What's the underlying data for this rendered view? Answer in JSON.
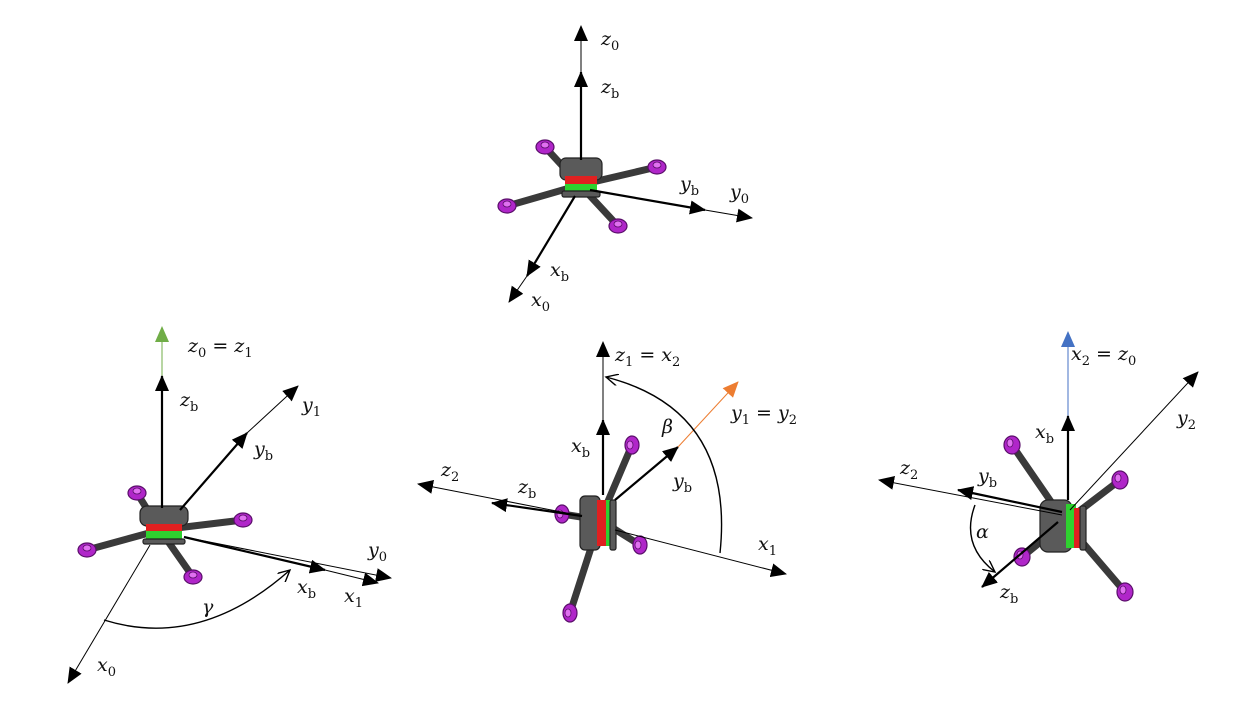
{
  "colors": {
    "axis": "#000000",
    "green_axis": "#70ad47",
    "orange_axis": "#ed7d31",
    "blue_axis": "#4472c4",
    "motor": "#b026c9",
    "frame": "#3a3a3a",
    "red_part": "#e02020",
    "green_part": "#2fd12f"
  },
  "panels": {
    "top": {
      "z0": {
        "base": "z",
        "sub": "0"
      },
      "zb": {
        "base": "z",
        "sub": "b"
      },
      "yb": {
        "base": "y",
        "sub": "b"
      },
      "y0": {
        "base": "y",
        "sub": "0"
      },
      "xb": {
        "base": "x",
        "sub": "b"
      },
      "x0": {
        "base": "x",
        "sub": "0"
      }
    },
    "yaw": {
      "z0z1": {
        "b1": "z",
        "s1": "0",
        "eq": " = ",
        "b2": "z",
        "s2": "1"
      },
      "zb": {
        "base": "z",
        "sub": "b"
      },
      "y1": {
        "base": "y",
        "sub": "1"
      },
      "yb": {
        "base": "y",
        "sub": "b"
      },
      "y0": {
        "base": "y",
        "sub": "0"
      },
      "xb": {
        "base": "x",
        "sub": "b"
      },
      "x1": {
        "base": "x",
        "sub": "1"
      },
      "x0": {
        "base": "x",
        "sub": "0"
      },
      "angle": "γ"
    },
    "pitch": {
      "z1x2": {
        "b1": "z",
        "s1": "1",
        "eq": " = ",
        "b2": "x",
        "s2": "2"
      },
      "y1y2": {
        "b1": "y",
        "s1": "1",
        "eq": " = ",
        "b2": "y",
        "s2": "2"
      },
      "xb": {
        "base": "x",
        "sub": "b"
      },
      "z2": {
        "base": "z",
        "sub": "2"
      },
      "zb": {
        "base": "z",
        "sub": "b"
      },
      "yb": {
        "base": "y",
        "sub": "b"
      },
      "x1": {
        "base": "x",
        "sub": "1"
      },
      "angle": "β"
    },
    "roll": {
      "x2z0": {
        "b1": "x",
        "s1": "2",
        "eq": " = ",
        "b2": "z",
        "s2": "0"
      },
      "y2": {
        "base": "y",
        "sub": "2"
      },
      "xb": {
        "base": "x",
        "sub": "b"
      },
      "z2": {
        "base": "z",
        "sub": "2"
      },
      "yb": {
        "base": "y",
        "sub": "b"
      },
      "zb": {
        "base": "z",
        "sub": "b"
      },
      "angle": "α"
    }
  }
}
